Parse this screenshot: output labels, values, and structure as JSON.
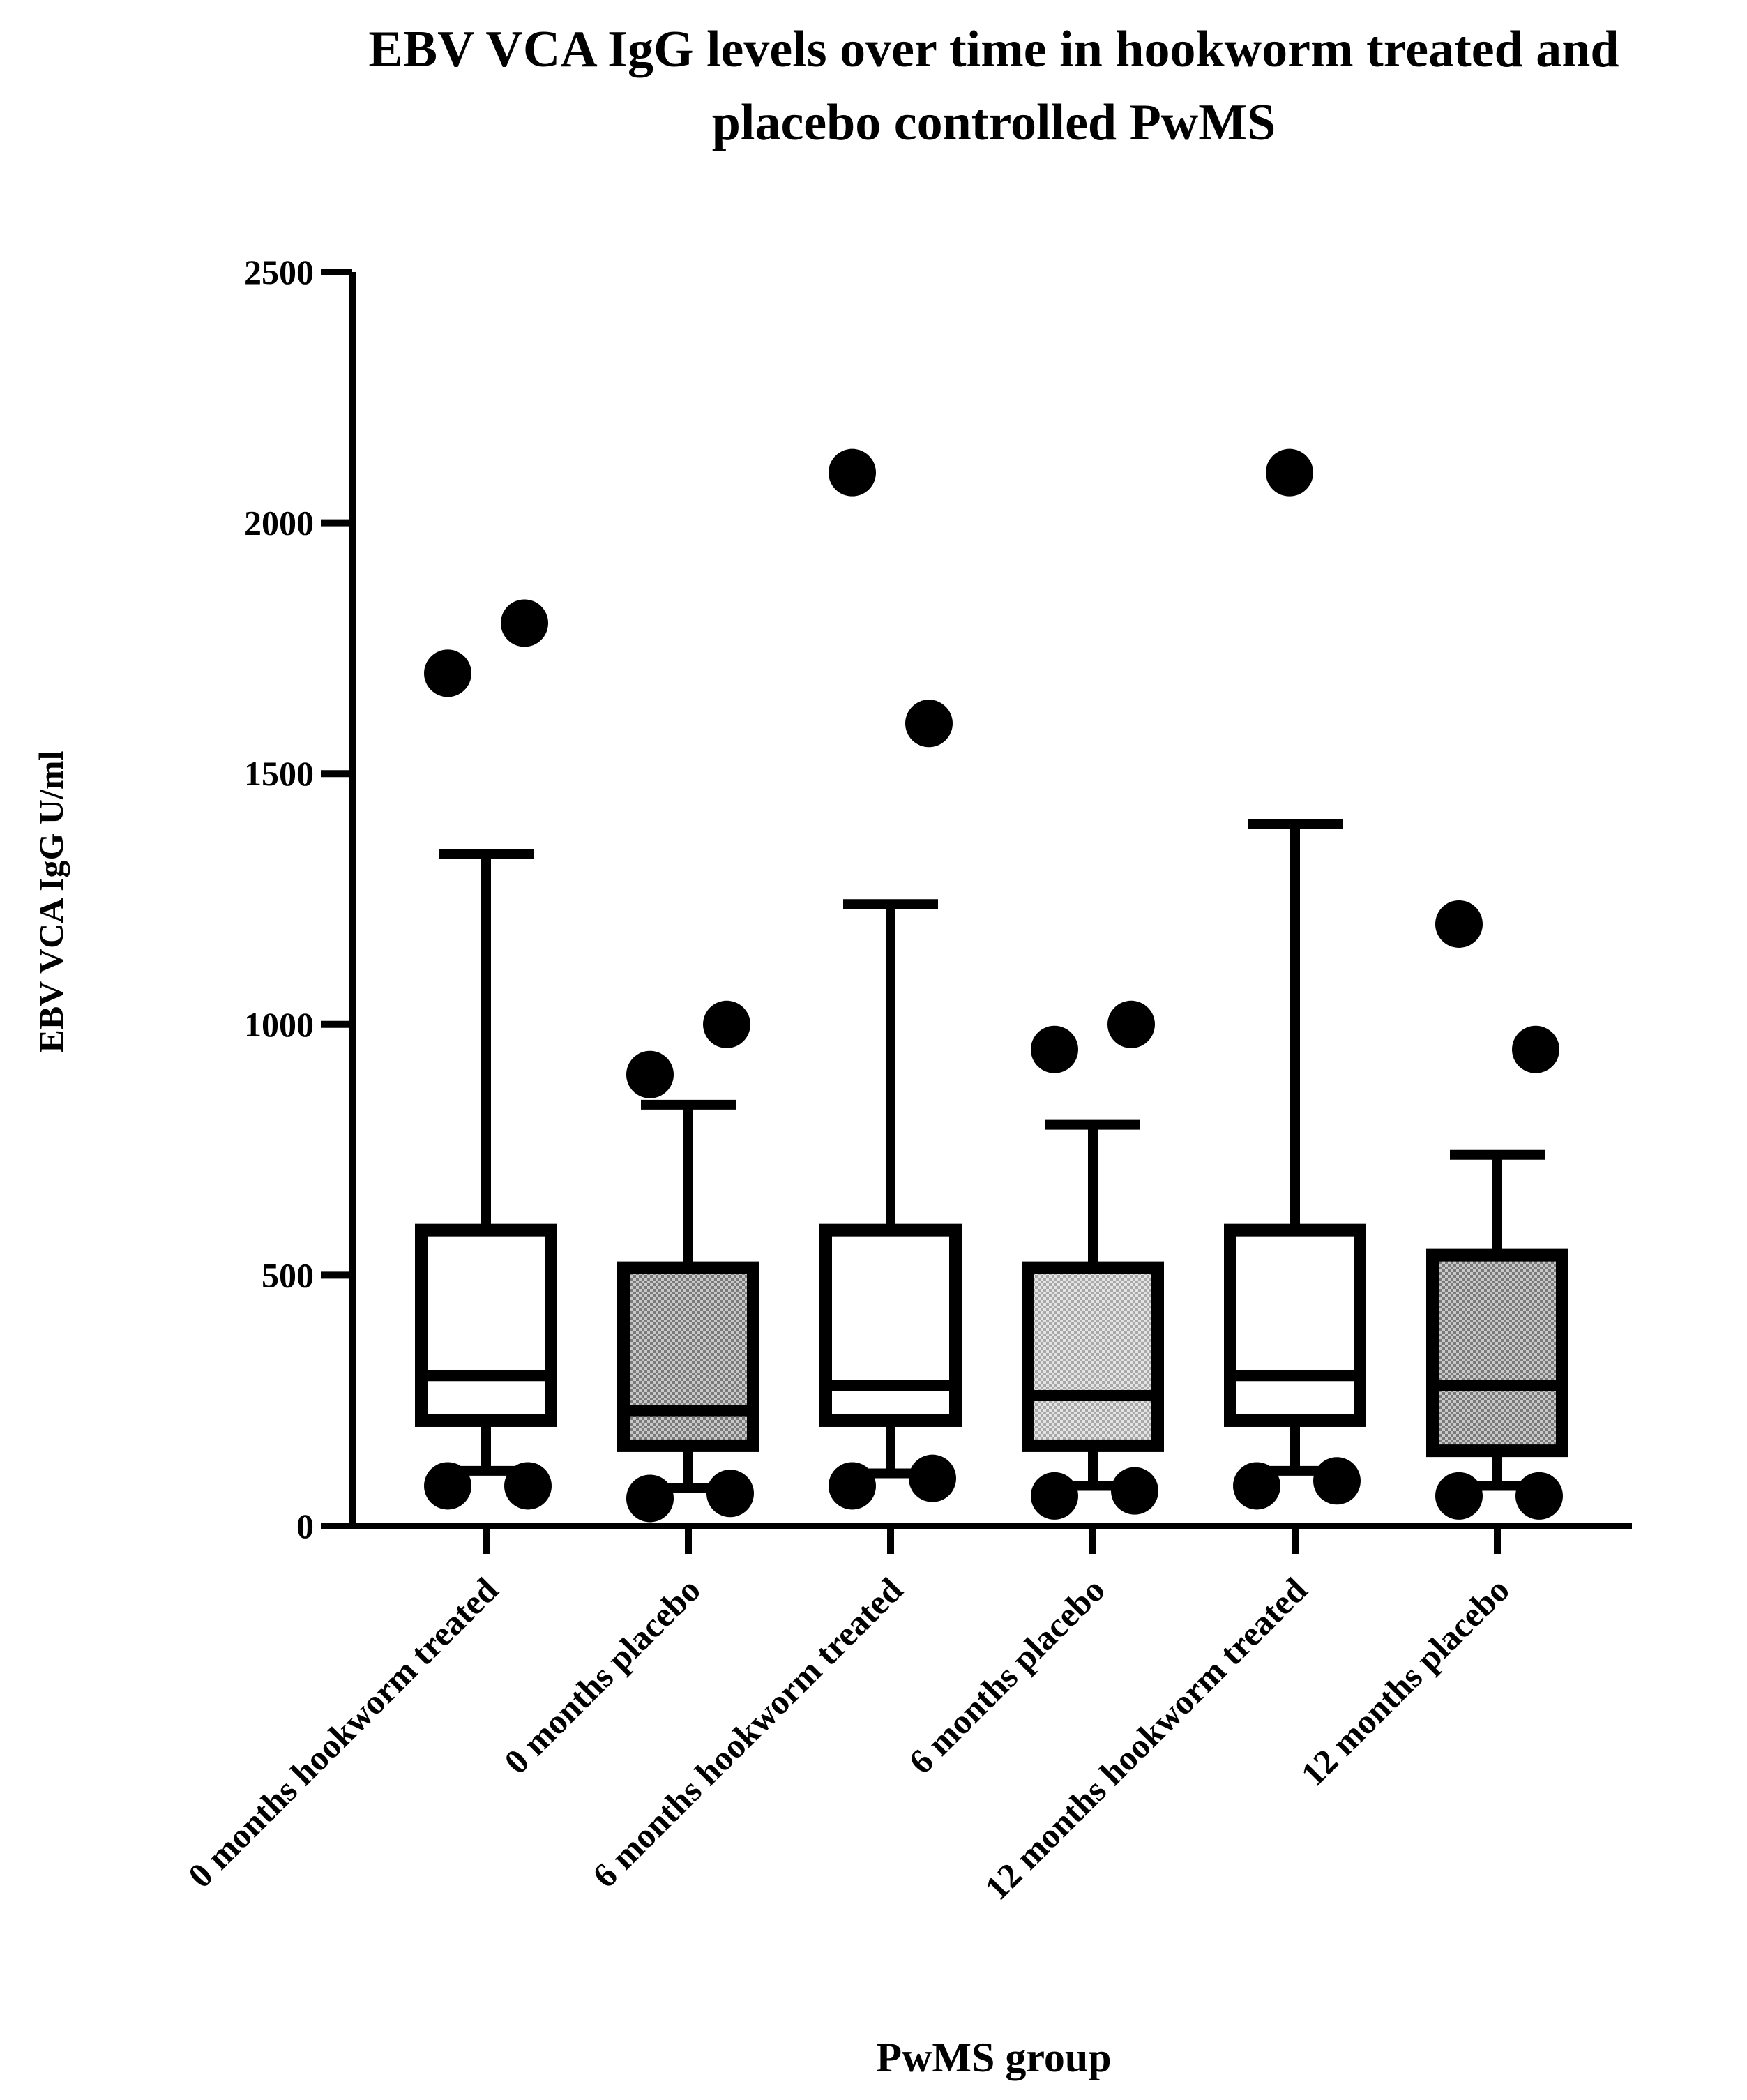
{
  "chart_data": {
    "type": "box",
    "title_lines": [
      "EBV VCA IgG levels over time in hookworm treated and",
      "placebo controlled PwMS"
    ],
    "xlabel": "PwMS group",
    "ylabel": "EBV VCA IgG U/ml",
    "ylim": [
      0,
      2500
    ],
    "yticks": [
      0,
      500,
      1000,
      1500,
      2000,
      2500
    ],
    "grid": false,
    "legend": "none",
    "categories": [
      "0 months hookworm treated",
      "0 months placebo",
      "6 months hookworm treated",
      "6 months placebo",
      "12 months hookworm treated",
      "12 months placebo"
    ],
    "boxes": [
      {
        "group": "0 months hookworm treated",
        "fill": "white",
        "whisker_low": 110,
        "q1": 210,
        "median": 300,
        "q3": 590,
        "whisker_high": 1340,
        "outliers": [
          1700,
          1800,
          80,
          80
        ]
      },
      {
        "group": "0 months placebo",
        "fill": "dark-pattern",
        "whisker_low": 75,
        "q1": 160,
        "median": 230,
        "q3": 515,
        "whisker_high": 840,
        "outliers": [
          900,
          1000,
          55,
          65
        ]
      },
      {
        "group": "6 months hookworm treated",
        "fill": "white",
        "whisker_low": 105,
        "q1": 210,
        "median": 280,
        "q3": 590,
        "whisker_high": 1240,
        "outliers": [
          2100,
          1600,
          80,
          95
        ]
      },
      {
        "group": "6 months placebo",
        "fill": "light-pattern",
        "whisker_low": 80,
        "q1": 160,
        "median": 260,
        "q3": 515,
        "whisker_high": 800,
        "outliers": [
          950,
          1000,
          60,
          70
        ]
      },
      {
        "group": "12 months hookworm treated",
        "fill": "white",
        "whisker_low": 110,
        "q1": 210,
        "median": 300,
        "q3": 590,
        "whisker_high": 1400,
        "outliers": [
          2100,
          80,
          90
        ]
      },
      {
        "group": "12 months placebo",
        "fill": "dark-pattern",
        "whisker_low": 80,
        "q1": 150,
        "median": 280,
        "q3": 540,
        "whisker_high": 740,
        "outliers": [
          1200,
          950,
          60,
          60
        ]
      }
    ]
  },
  "colors": {
    "ink": "#000000",
    "background": "#ffffff",
    "dark_pattern_bg": "#c8c8c8",
    "dark_pattern_dot": "#7a7a7a",
    "light_pattern_bg": "#e4e4e4",
    "light_pattern_dot": "#a8a8a8"
  }
}
